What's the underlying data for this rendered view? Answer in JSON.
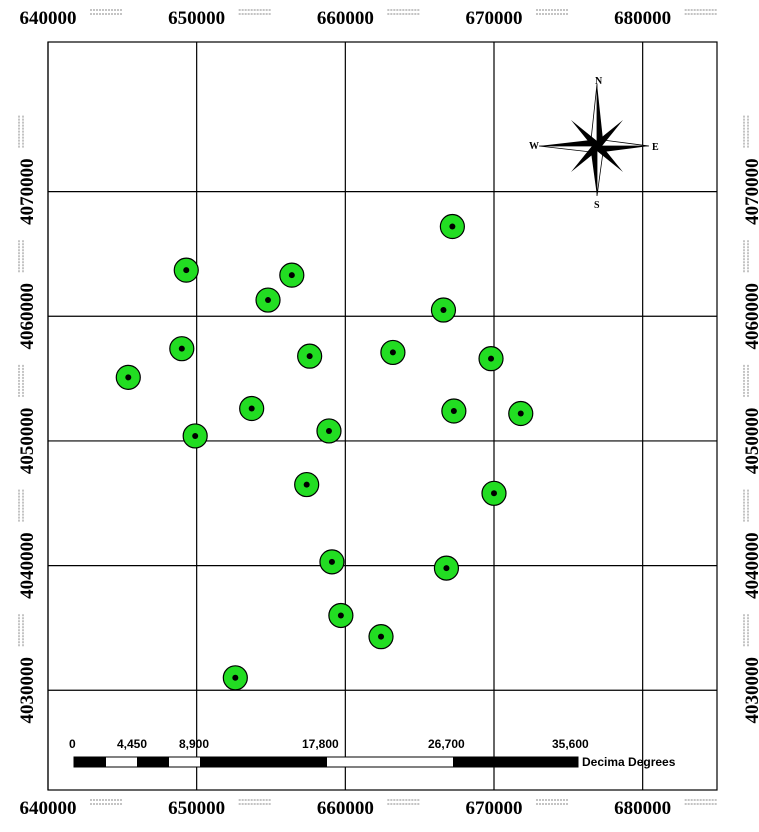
{
  "map": {
    "x_ticks": [
      "640000",
      "650000",
      "660000",
      "670000",
      "680000"
    ],
    "y_ticks": [
      "4070000",
      "4060000",
      "4050000",
      "4040000",
      "4030000"
    ],
    "extent": {
      "x": [
        640000,
        685000
      ],
      "y": [
        4022000,
        4082000
      ]
    },
    "grid": true,
    "point_fill": "#22dd22",
    "point_stroke": "#000000",
    "points": [
      {
        "x": 667200,
        "y": 4067200
      },
      {
        "x": 649300,
        "y": 4063700
      },
      {
        "x": 656400,
        "y": 4063300
      },
      {
        "x": 654800,
        "y": 4061300
      },
      {
        "x": 666600,
        "y": 4060500
      },
      {
        "x": 649000,
        "y": 4057400
      },
      {
        "x": 657600,
        "y": 4056800
      },
      {
        "x": 663200,
        "y": 4057100
      },
      {
        "x": 669800,
        "y": 4056600
      },
      {
        "x": 645400,
        "y": 4055100
      },
      {
        "x": 653700,
        "y": 4052600
      },
      {
        "x": 667300,
        "y": 4052400
      },
      {
        "x": 671800,
        "y": 4052200
      },
      {
        "x": 649900,
        "y": 4050400
      },
      {
        "x": 658900,
        "y": 4050800
      },
      {
        "x": 657400,
        "y": 4046500
      },
      {
        "x": 670000,
        "y": 4045800
      },
      {
        "x": 659100,
        "y": 4040300
      },
      {
        "x": 666800,
        "y": 4039800
      },
      {
        "x": 659700,
        "y": 4036000
      },
      {
        "x": 662400,
        "y": 4034300
      },
      {
        "x": 652600,
        "y": 4031000
      }
    ]
  },
  "compass": {
    "n": "N",
    "s": "S",
    "e": "E",
    "w": "W"
  },
  "scale_bar": {
    "labels": [
      "0",
      "4,450",
      "8,900",
      "17,800",
      "26,700",
      "35,600"
    ],
    "units": "Decima Degrees"
  }
}
